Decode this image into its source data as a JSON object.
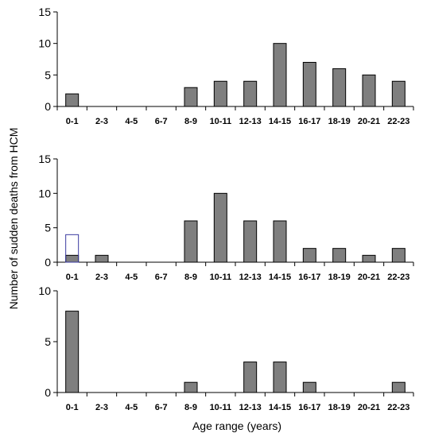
{
  "ylabel": "Number of sudden deaths from HCM",
  "xlabel": "Age range (years)",
  "chart_data": [
    {
      "type": "bar",
      "categories": [
        "0-1",
        "2-3",
        "4-5",
        "6-7",
        "8-9",
        "10-11",
        "12-13",
        "14-15",
        "16-17",
        "18-19",
        "20-21",
        "22-23"
      ],
      "series": [
        {
          "values": [
            2,
            0,
            0,
            0,
            3,
            4,
            4,
            10,
            7,
            6,
            5,
            4
          ]
        }
      ],
      "ylim": [
        0,
        15
      ],
      "yticks": [
        0,
        5,
        10,
        15
      ],
      "bar_color": "#7f7f7f"
    },
    {
      "type": "bar",
      "categories": [
        "0-1",
        "2-3",
        "4-5",
        "6-7",
        "8-9",
        "10-11",
        "12-13",
        "14-15",
        "16-17",
        "18-19",
        "20-21",
        "22-23"
      ],
      "series": [
        {
          "values": [
            1,
            1,
            0,
            0,
            6,
            10,
            6,
            6,
            2,
            2,
            1,
            2
          ]
        },
        {
          "values": [
            4,
            0,
            0,
            0,
            0,
            0,
            0,
            0,
            0,
            0,
            0,
            0
          ],
          "style": "outline"
        }
      ],
      "ylim": [
        0,
        15
      ],
      "yticks": [
        0,
        5,
        10,
        15
      ],
      "bar_color": "#7f7f7f",
      "outline_color": "#3a3aa0"
    },
    {
      "type": "bar",
      "categories": [
        "0-1",
        "2-3",
        "4-5",
        "6-7",
        "8-9",
        "10-11",
        "12-13",
        "14-15",
        "16-17",
        "18-19",
        "20-21",
        "22-23"
      ],
      "series": [
        {
          "values": [
            8,
            0,
            0,
            0,
            1,
            0,
            3,
            3,
            1,
            0,
            0,
            1
          ]
        }
      ],
      "ylim": [
        0,
        10
      ],
      "yticks": [
        0,
        5,
        10
      ],
      "bar_color": "#7f7f7f"
    }
  ]
}
